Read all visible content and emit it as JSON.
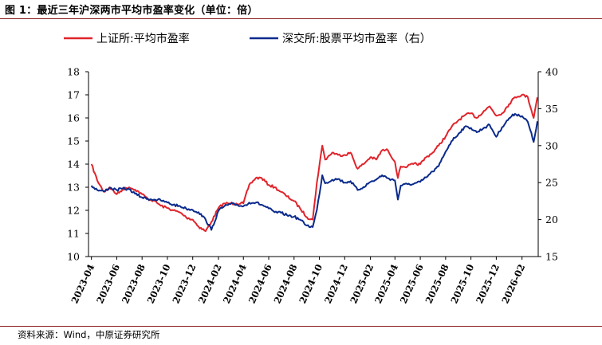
{
  "figure": {
    "title": "图 1：最近三年沪深两市平均市盈率变化（单位：倍）",
    "source": "资料来源：Wind，中原证券研究所"
  },
  "colors": {
    "sse": "#e0242b",
    "szse": "#0a2a8c",
    "rule": "#8b1a1a",
    "axis": "#000000"
  },
  "chart_data": {
    "type": "line",
    "title": "",
    "xlabel": "",
    "ylabel": "",
    "y2label": "",
    "legend_position": "top",
    "grid": false,
    "x_tick_labels": [
      "2023-04",
      "2023-06",
      "2023-08",
      "2023-10",
      "2023-12",
      "2024-02",
      "2024-04",
      "2024-06",
      "2024-08",
      "2024-10",
      "2024-12",
      "2025-02",
      "2025-04",
      "2025-06",
      "2025-08",
      "2025-10",
      "2025-12",
      "2026-02"
    ],
    "ylim": [
      10,
      18
    ],
    "y_ticks": [
      10,
      11,
      12,
      13,
      14,
      15,
      16,
      17,
      18
    ],
    "y2lim": [
      15,
      40
    ],
    "y2_ticks": [
      15,
      20,
      25,
      30,
      35,
      40
    ],
    "series": [
      {
        "name": "上证所:平均市盈率",
        "axis": "left",
        "x": [
          "2023-04-01",
          "2023-04-15",
          "2023-05-01",
          "2023-05-15",
          "2023-06-01",
          "2023-06-15",
          "2023-07-01",
          "2023-07-15",
          "2023-08-01",
          "2023-08-15",
          "2023-09-01",
          "2023-09-15",
          "2023-10-01",
          "2023-10-15",
          "2023-11-01",
          "2023-11-15",
          "2023-12-01",
          "2023-12-15",
          "2024-01-01",
          "2024-01-15",
          "2024-02-01",
          "2024-02-15",
          "2024-03-01",
          "2024-03-15",
          "2024-04-01",
          "2024-04-15",
          "2024-05-01",
          "2024-05-15",
          "2024-06-01",
          "2024-06-15",
          "2024-07-01",
          "2024-07-15",
          "2024-08-01",
          "2024-08-15",
          "2024-09-01",
          "2024-09-15",
          "2024-09-25",
          "2024-10-08",
          "2024-10-15",
          "2024-11-01",
          "2024-11-15",
          "2024-12-01",
          "2024-12-15",
          "2025-01-01",
          "2025-01-15",
          "2025-02-01",
          "2025-02-15",
          "2025-03-01",
          "2025-03-15",
          "2025-04-01",
          "2025-04-08",
          "2025-04-15",
          "2025-05-01",
          "2025-05-15",
          "2025-06-01",
          "2025-06-15",
          "2025-07-01",
          "2025-07-15",
          "2025-08-01",
          "2025-08-15",
          "2025-09-01",
          "2025-09-15",
          "2025-10-01",
          "2025-10-15",
          "2025-11-01",
          "2025-11-15",
          "2025-12-01",
          "2025-12-15",
          "2026-01-01",
          "2026-01-15",
          "2026-02-01",
          "2026-02-15",
          "2026-03-01",
          "2026-03-10"
        ],
        "y": [
          14.0,
          13.3,
          12.8,
          13.0,
          12.7,
          12.9,
          13.0,
          12.9,
          12.7,
          12.5,
          12.4,
          12.2,
          12.1,
          12.0,
          11.9,
          11.7,
          11.6,
          11.3,
          11.1,
          11.5,
          12.1,
          12.3,
          12.3,
          12.3,
          12.3,
          13.1,
          13.4,
          13.4,
          13.1,
          13.0,
          12.8,
          12.6,
          12.4,
          12.1,
          11.7,
          11.6,
          13.2,
          14.8,
          14.2,
          14.5,
          14.4,
          14.4,
          14.5,
          13.8,
          14.0,
          14.3,
          14.2,
          14.6,
          14.6,
          14.1,
          13.4,
          13.9,
          13.9,
          14.0,
          14.0,
          14.3,
          14.5,
          14.8,
          15.2,
          15.6,
          15.9,
          16.1,
          16.2,
          16.0,
          16.3,
          16.5,
          16.1,
          16.2,
          16.6,
          16.9,
          17.0,
          16.9,
          16.0,
          16.9
        ]
      },
      {
        "name": "深交所:股票平均市盈率（右）",
        "axis": "right",
        "x": [
          "2023-04-01",
          "2023-04-15",
          "2023-05-01",
          "2023-05-15",
          "2023-06-01",
          "2023-06-15",
          "2023-07-01",
          "2023-07-15",
          "2023-08-01",
          "2023-08-15",
          "2023-09-01",
          "2023-09-15",
          "2023-10-01",
          "2023-10-15",
          "2023-11-01",
          "2023-11-15",
          "2023-12-01",
          "2023-12-15",
          "2024-01-01",
          "2024-01-15",
          "2024-02-01",
          "2024-02-15",
          "2024-03-01",
          "2024-03-15",
          "2024-04-01",
          "2024-04-15",
          "2024-05-01",
          "2024-05-15",
          "2024-06-01",
          "2024-06-15",
          "2024-07-01",
          "2024-07-15",
          "2024-08-01",
          "2024-08-15",
          "2024-09-01",
          "2024-09-15",
          "2024-09-25",
          "2024-10-08",
          "2024-10-15",
          "2024-11-01",
          "2024-11-15",
          "2024-12-01",
          "2024-12-15",
          "2025-01-01",
          "2025-01-15",
          "2025-02-01",
          "2025-02-15",
          "2025-03-01",
          "2025-03-15",
          "2025-04-01",
          "2025-04-08",
          "2025-04-15",
          "2025-05-01",
          "2025-05-15",
          "2025-06-01",
          "2025-06-15",
          "2025-07-01",
          "2025-07-15",
          "2025-08-01",
          "2025-08-15",
          "2025-09-01",
          "2025-09-15",
          "2025-10-01",
          "2025-10-15",
          "2025-11-01",
          "2025-11-15",
          "2025-12-01",
          "2025-12-15",
          "2026-01-01",
          "2026-01-15",
          "2026-02-01",
          "2026-02-15",
          "2026-03-01",
          "2026-03-10"
        ],
        "y": [
          24.6,
          24.0,
          23.8,
          24.3,
          24.0,
          24.2,
          24.1,
          23.5,
          23.0,
          22.8,
          22.7,
          22.6,
          22.3,
          22.0,
          21.8,
          21.5,
          21.3,
          21.0,
          20.0,
          18.6,
          21.2,
          21.8,
          22.1,
          22.0,
          21.8,
          22.3,
          22.3,
          22.0,
          21.5,
          21.0,
          20.9,
          20.6,
          20.4,
          20.0,
          19.2,
          19.0,
          21.3,
          26.0,
          24.9,
          25.4,
          25.5,
          25.0,
          25.2,
          24.0,
          24.4,
          25.1,
          25.4,
          26.0,
          25.6,
          25.3,
          22.7,
          24.6,
          24.8,
          24.8,
          25.1,
          25.7,
          26.5,
          27.2,
          29.2,
          30.6,
          31.6,
          32.5,
          32.4,
          31.8,
          32.4,
          32.8,
          31.2,
          32.5,
          33.7,
          34.3,
          34.0,
          33.2,
          30.5,
          33.3
        ]
      }
    ]
  }
}
